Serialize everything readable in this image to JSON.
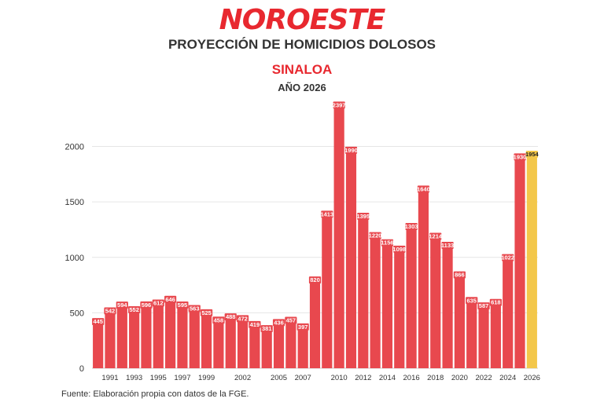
{
  "header": {
    "logo_text": "NOROESTE",
    "title": "PROYECCIÓN DE HOMICIDIOS DOLOSOS",
    "subtitle": "SINALOA",
    "year_label": "AÑO 2026"
  },
  "footer": {
    "source": "Fuente: Elaboración propia con datos de la FGE."
  },
  "colors": {
    "bar": "#e8484e",
    "projection": "#f3c74a",
    "brand": "#e8282f",
    "grid": "#e6e6e6"
  },
  "chart_data": {
    "type": "bar",
    "title": "PROYECCIÓN DE HOMICIDIOS DOLOSOS",
    "xlabel": "",
    "ylabel": "",
    "ylim": [
      0,
      2400
    ],
    "yticks": [
      0,
      500,
      1000,
      1500,
      2000
    ],
    "grid": true,
    "categories": [
      "1990",
      "1991",
      "1992",
      "1993",
      "1994",
      "1995",
      "1996",
      "1997",
      "1998",
      "1999",
      "2000",
      "2001",
      "2002",
      "2003",
      "2004",
      "2005",
      "2006",
      "2007",
      "2008",
      "2009",
      "2010",
      "2011",
      "2012",
      "2013",
      "2014",
      "2015",
      "2016",
      "2017",
      "2018",
      "2019",
      "2020",
      "2021",
      "2022",
      "2023",
      "2024",
      "2025",
      "2026"
    ],
    "xtick_labels": [
      "1991",
      "1993",
      "1995",
      "1997",
      "1999",
      "2002",
      "2005",
      "2007",
      "2010",
      "2012",
      "2014",
      "2016",
      "2018",
      "2020",
      "2022",
      "2024",
      "2026"
    ],
    "values": [
      445,
      542,
      594,
      552,
      596,
      612,
      646,
      595,
      563,
      525,
      458,
      488,
      472,
      419,
      381,
      436,
      457,
      397,
      820,
      1413,
      2397,
      1990,
      1395,
      1220,
      1156,
      1098,
      1303,
      1640,
      1214,
      1133,
      866,
      635,
      587,
      618,
      1022,
      1930,
      1954
    ],
    "value_labels": [
      "445",
      "542",
      "594",
      "552",
      "596",
      "612",
      "646",
      "595",
      "563",
      "525",
      "458",
      "488",
      "472",
      "419",
      "381",
      "436",
      "457",
      "397",
      "820",
      "1413",
      "2397",
      "1990",
      "1395",
      "1220",
      "1156",
      "1098",
      "1303",
      "1640",
      "1214",
      "1133",
      "866",
      "635",
      "587",
      "618",
      "1022",
      "1930",
      "1954"
    ],
    "highlight_category": "2026"
  }
}
